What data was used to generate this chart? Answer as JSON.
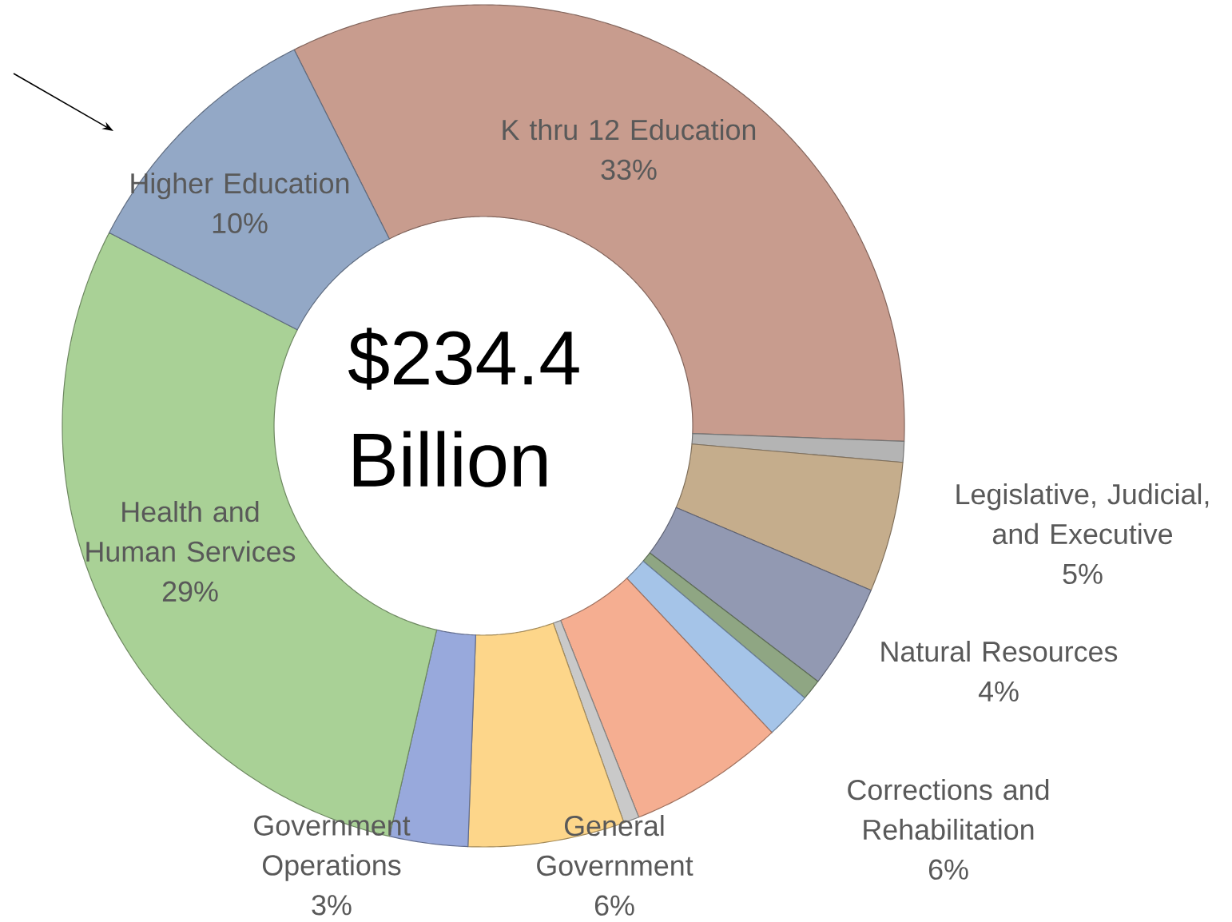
{
  "chart_data": {
    "type": "donut",
    "categories": [
      "K thru 12 Education",
      null,
      "Legislative, Judicial, and Executive",
      "Natural Resources",
      null,
      null,
      "Corrections and Rehabilitation",
      null,
      "General Government",
      "Government Operations",
      "Health and Human Services",
      "Higher Education"
    ],
    "values": [
      33,
      0.8,
      5,
      4,
      0.8,
      1.8,
      6,
      0.6,
      6,
      3,
      29,
      10
    ],
    "value_labels": [
      "33%",
      null,
      "5%",
      "4%",
      null,
      null,
      "6%",
      null,
      "6%",
      "3%",
      "29%",
      "10%"
    ],
    "colors": [
      "#c89c8e",
      "#b4b4b4",
      "#c5ad8c",
      "#9299b2",
      "#8fa683",
      "#a5c4e8",
      "#f5ae91",
      "#c9c9c9",
      "#fdd68a",
      "#98a9dc",
      "#a9d196",
      "#93a8c6"
    ],
    "annotations": [
      "$234.4 Billion"
    ]
  }
}
